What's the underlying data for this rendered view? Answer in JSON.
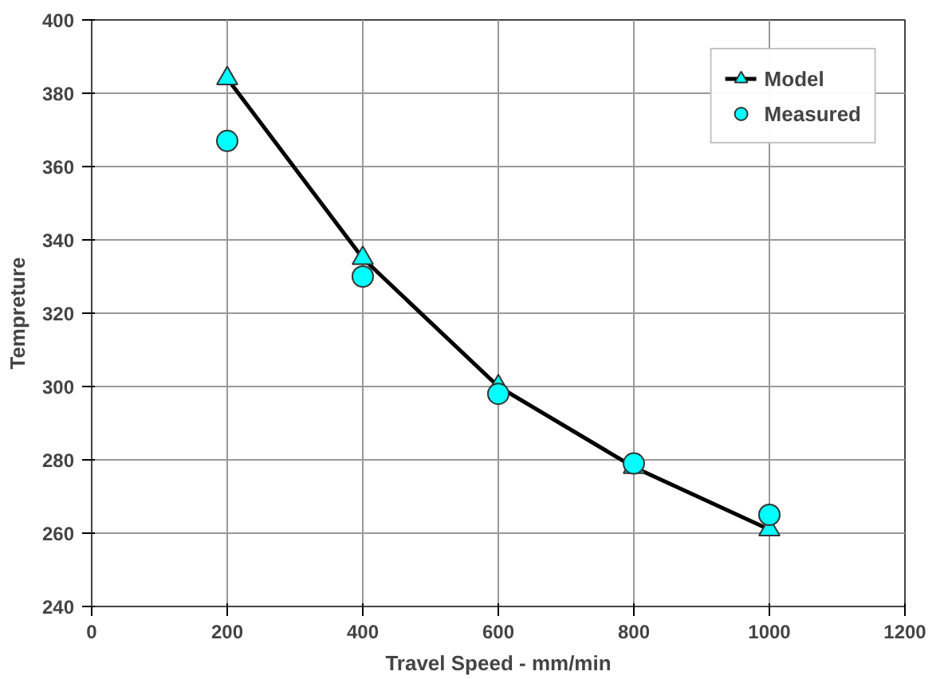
{
  "chart_data": {
    "type": "line",
    "xlabel": "Travel Speed - mm/min",
    "ylabel": "Tempreture",
    "x": [
      200,
      400,
      600,
      800,
      1000
    ],
    "series": [
      {
        "name": "Model",
        "color": "#00ffff",
        "marker": "triangle",
        "values": [
          384,
          335,
          300,
          278,
          261
        ]
      },
      {
        "name": "Measured",
        "type": "scatter",
        "color": "#00ffff",
        "marker": "circle",
        "values": [
          367,
          330,
          298,
          279,
          265
        ]
      }
    ],
    "xlim": [
      0,
      1200
    ],
    "xticks": [
      0,
      200,
      400,
      600,
      800,
      1000,
      1200
    ],
    "ylim": [
      240,
      400
    ],
    "yticks": [
      240,
      260,
      280,
      300,
      320,
      340,
      360,
      380,
      400
    ],
    "grid": true,
    "legend": "top right"
  }
}
